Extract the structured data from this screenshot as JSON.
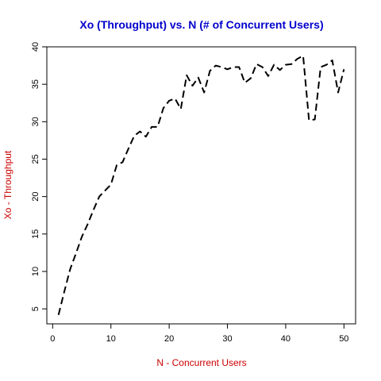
{
  "chart_data": {
    "type": "line",
    "title": "Xo (Throughput) vs. N (# of Concurrent Users)",
    "xlabel": "N - Concurrent Users",
    "ylabel": "Xo - Throughput",
    "xlim": [
      -1,
      52
    ],
    "ylim": [
      3,
      40
    ],
    "xticks": [
      0,
      10,
      20,
      30,
      40,
      50
    ],
    "yticks": [
      5,
      10,
      15,
      20,
      25,
      30,
      35,
      40
    ],
    "grid": false,
    "line_style": "dashed",
    "colors": {
      "title": "#0000cc",
      "axis_labels": "#cc0000",
      "line": "#000000"
    },
    "x": [
      1,
      2,
      3,
      4,
      5,
      6,
      7,
      8,
      9,
      10,
      11,
      12,
      13,
      14,
      15,
      16,
      17,
      18,
      19,
      20,
      21,
      22,
      23,
      24,
      25,
      26,
      27,
      28,
      29,
      30,
      31,
      32,
      33,
      34,
      35,
      36,
      37,
      38,
      39,
      40,
      41,
      42,
      43,
      44,
      45,
      46,
      47,
      48,
      49,
      50
    ],
    "y": [
      4.2,
      7.3,
      10.3,
      12.4,
      14.6,
      16.3,
      18.2,
      20.0,
      20.8,
      21.6,
      24.2,
      24.6,
      26.4,
      28.1,
      28.7,
      28.0,
      29.3,
      29.3,
      31.8,
      32.8,
      33.1,
      31.7,
      36.2,
      34.8,
      35.9,
      33.9,
      36.8,
      37.5,
      37.3,
      37.0,
      37.3,
      37.3,
      35.2,
      35.8,
      37.7,
      37.3,
      36.1,
      37.6,
      36.9,
      37.6,
      37.7,
      38.4,
      38.8,
      30.2,
      30.3,
      37.3,
      37.6,
      38.2,
      33.9,
      37.0
    ]
  }
}
